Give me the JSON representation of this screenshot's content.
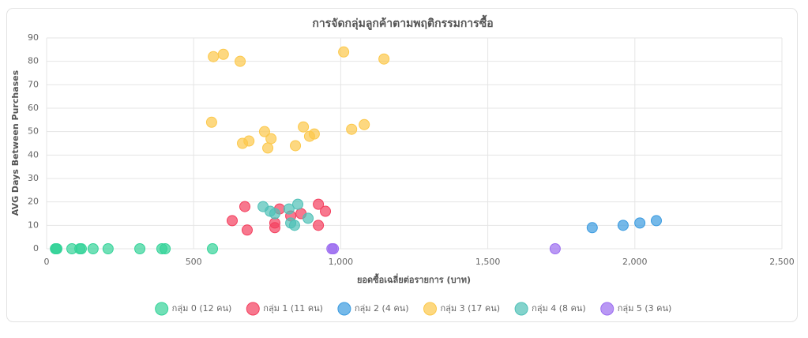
{
  "chart_data": {
    "type": "scatter",
    "title": "การจัดกลุ่มลูกค้าตามพฤติกรรมการซื้อ",
    "xlabel": "ยอดซื้อเฉลี่ยต่อรายการ (บาท)",
    "ylabel": "AVG Days Between Purchases",
    "xlim": [
      0,
      2500
    ],
    "xticks": [
      0,
      500,
      {
        "value": 1000,
        "label": "1,000"
      },
      {
        "value": 1500,
        "label": "1,500"
      },
      {
        "value": 2000,
        "label": "2,000"
      },
      {
        "value": 2500,
        "label": "2,500"
      }
    ],
    "ylim": [
      0,
      90
    ],
    "yticks": [
      0,
      10,
      20,
      30,
      40,
      50,
      60,
      70,
      80,
      90
    ],
    "grid": true,
    "legend": "bottom",
    "series": [
      {
        "name": "กลุ่ม 0 (12 คน)",
        "color": "#34d399",
        "x": [
          30,
          32,
          35,
          86,
          113,
          118,
          158,
          209,
          317,
          392,
          403,
          564
        ],
        "values": [
          0,
          0,
          0,
          0,
          0,
          0,
          0,
          0,
          0,
          0,
          0,
          0
        ]
      },
      {
        "name": "กลุ่ม 1 (11 คน)",
        "color": "#f43f5e",
        "x": [
          631,
          674,
          682,
          776,
          776,
          792,
          830,
          865,
          924,
          948,
          924
        ],
        "values": [
          12,
          18,
          8,
          11,
          9,
          17,
          14,
          15,
          19,
          16,
          10
        ]
      },
      {
        "name": "กลุ่ม 2 (4 คน)",
        "color": "#3b9be0",
        "x": [
          1855,
          1960,
          2017,
          2073
        ],
        "values": [
          9,
          10,
          11,
          12
        ]
      },
      {
        "name": "กลุ่ม 3 (17 คน)",
        "color": "#fcc84a",
        "x": [
          567,
          601,
          658,
          1010,
          1147,
          561,
          666,
          688,
          741,
          763,
          752,
          846,
          873,
          894,
          910,
          1037,
          1080
        ],
        "values": [
          82,
          83,
          80,
          84,
          81,
          54,
          45,
          46,
          50,
          47,
          43,
          44,
          52,
          48,
          49,
          51,
          53
        ]
      },
      {
        "name": "กลุ่ม 4 (8 คน)",
        "color": "#4fc0b7",
        "x": [
          736,
          760,
          776,
          824,
          854,
          889,
          830,
          843
        ],
        "values": [
          18,
          16,
          15,
          17,
          19,
          13,
          11,
          10
        ]
      },
      {
        "name": "กลุ่ม 5 (3 คน)",
        "color": "#9b6cf0",
        "x": [
          970,
          975,
          1729
        ],
        "values": [
          0,
          0,
          0
        ]
      }
    ]
  }
}
